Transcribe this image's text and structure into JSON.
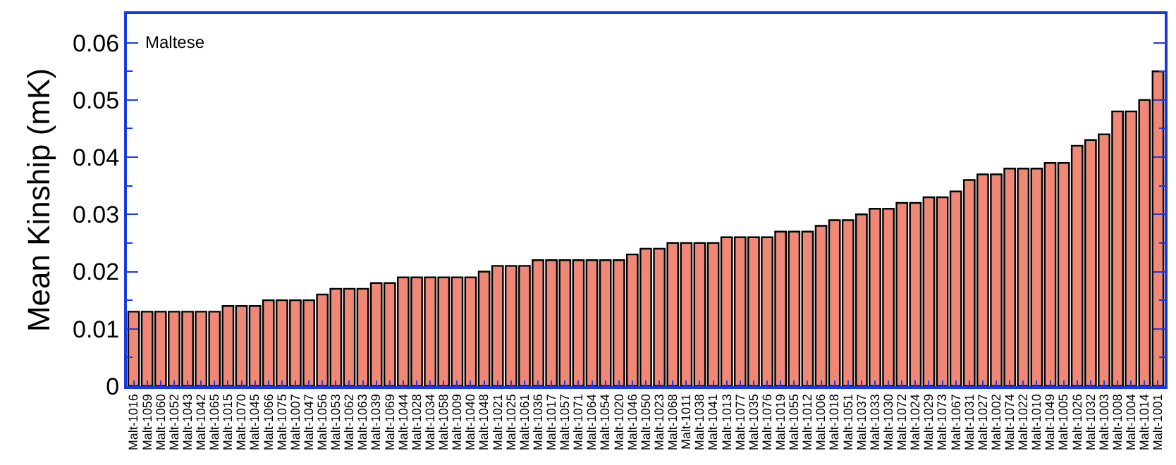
{
  "chart_data": {
    "type": "bar",
    "ylabel": "Mean Kinship (mK)",
    "annotations": [
      "Maltese"
    ],
    "categories": [
      "Malt-1016",
      "Malt-1059",
      "Malt-1060",
      "Malt-1052",
      "Malt-1043",
      "Malt-1042",
      "Malt-1065",
      "Malt-1015",
      "Malt-1070",
      "Malt-1045",
      "Malt-1066",
      "Malt-1075",
      "Malt-1007",
      "Malt-1047",
      "Malt-1056",
      "Malt-1053",
      "Malt-1062",
      "Malt-1063",
      "Malt-1039",
      "Malt-1069",
      "Malt-1044",
      "Malt-1028",
      "Malt-1034",
      "Malt-1058",
      "Malt-1009",
      "Malt-1040",
      "Malt-1048",
      "Malt-1021",
      "Malt-1025",
      "Malt-1061",
      "Malt-1036",
      "Malt-1017",
      "Malt-1057",
      "Malt-1071",
      "Malt-1064",
      "Malt-1054",
      "Malt-1020",
      "Malt-1046",
      "Malt-1050",
      "Malt-1023",
      "Malt-1068",
      "Malt-1011",
      "Malt-1038",
      "Malt-1041",
      "Malt-1013",
      "Malt-1077",
      "Malt-1035",
      "Malt-1076",
      "Malt-1019",
      "Malt-1055",
      "Malt-1012",
      "Malt-1006",
      "Malt-1018",
      "Malt-1051",
      "Malt-1037",
      "Malt-1033",
      "Malt-1030",
      "Malt-1072",
      "Malt-1024",
      "Malt-1029",
      "Malt-1073",
      "Malt-1067",
      "Malt-1031",
      "Malt-1027",
      "Malt-1002",
      "Malt-1074",
      "Malt-1022",
      "Malt-1010",
      "Malt-1049",
      "Malt-1005",
      "Malt-1026",
      "Malt-1032",
      "Malt-1003",
      "Malt-1008",
      "Malt-1004",
      "Malt-1014",
      "Malt-1001"
    ],
    "values": [
      0.013,
      0.013,
      0.013,
      0.013,
      0.013,
      0.013,
      0.013,
      0.014,
      0.014,
      0.014,
      0.015,
      0.015,
      0.015,
      0.015,
      0.016,
      0.017,
      0.017,
      0.017,
      0.018,
      0.018,
      0.019,
      0.019,
      0.019,
      0.019,
      0.019,
      0.019,
      0.02,
      0.021,
      0.021,
      0.021,
      0.022,
      0.022,
      0.022,
      0.022,
      0.022,
      0.022,
      0.022,
      0.023,
      0.024,
      0.024,
      0.025,
      0.025,
      0.025,
      0.025,
      0.026,
      0.026,
      0.026,
      0.026,
      0.027,
      0.027,
      0.027,
      0.028,
      0.029,
      0.029,
      0.03,
      0.031,
      0.031,
      0.032,
      0.032,
      0.033,
      0.033,
      0.034,
      0.036,
      0.037,
      0.037,
      0.038,
      0.038,
      0.038,
      0.039,
      0.039,
      0.042,
      0.043,
      0.044,
      0.048,
      0.048,
      0.05,
      0.055
    ],
    "color": "#f08878",
    "ylim": [
      0,
      0.065
    ],
    "yticks": [
      0,
      0.01,
      0.02,
      0.03,
      0.04,
      0.05,
      0.06
    ]
  }
}
